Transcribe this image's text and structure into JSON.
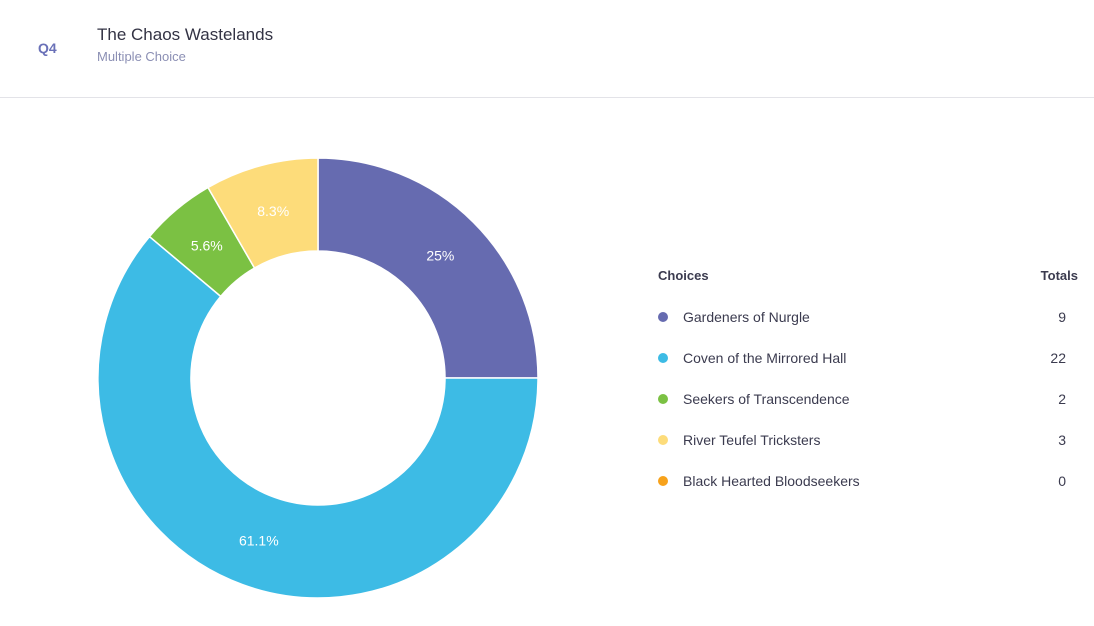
{
  "header": {
    "question_number": "Q4",
    "title": "The Chaos Wastelands",
    "subtitle": "Multiple Choice"
  },
  "legend": {
    "choices_header": "Choices",
    "totals_header": "Totals",
    "items": [
      {
        "label": "Gardeners of Nurgle",
        "total": "9",
        "color": "#666bb0"
      },
      {
        "label": "Coven of the Mirrored Hall",
        "total": "22",
        "color": "#3dbbe5"
      },
      {
        "label": "Seekers of Transcendence",
        "total": "2",
        "color": "#7bc143"
      },
      {
        "label": "River Teufel Tricksters",
        "total": "3",
        "color": "#fddc7a"
      },
      {
        "label": "Black Hearted Bloodseekers",
        "total": "0",
        "color": "#f7a21b"
      }
    ]
  },
  "chart_data": {
    "type": "pie",
    "donut": true,
    "categories": [
      "Gardeners of Nurgle",
      "Coven of the Mirrored Hall",
      "Seekers of Transcendence",
      "River Teufel Tricksters",
      "Black Hearted Bloodseekers"
    ],
    "values": [
      9,
      22,
      2,
      3,
      0
    ],
    "percent_labels": [
      "25%",
      "61.1%",
      "5.6%",
      "8.3%",
      ""
    ],
    "colors": [
      "#666bb0",
      "#3dbbe5",
      "#7bc143",
      "#fddc7a",
      "#f7a21b"
    ]
  }
}
